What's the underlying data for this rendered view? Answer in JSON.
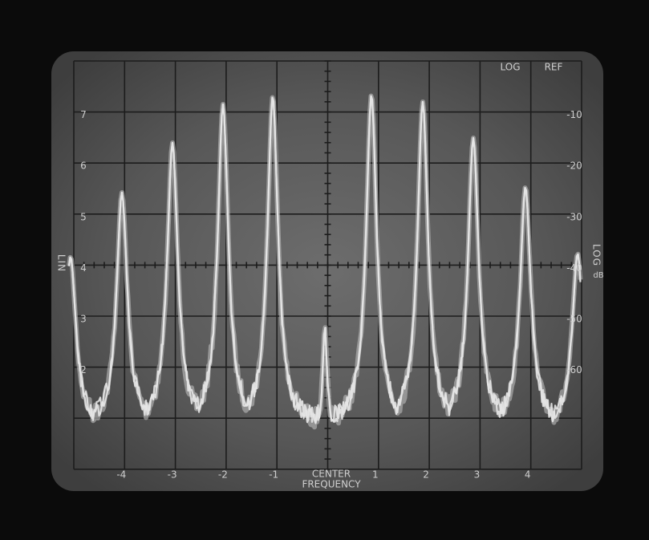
{
  "left_axis": {
    "title": "LIN",
    "labels": [
      "7",
      "6",
      "5",
      "4",
      "3",
      "2"
    ]
  },
  "right_axis": {
    "title": "LOG",
    "unit": "dB",
    "labels": [
      "-10",
      "-20",
      "-30",
      "-40",
      "-50",
      "-60"
    ]
  },
  "bottom_axis": {
    "labels": [
      "-4",
      "-3",
      "-2",
      "-1",
      "1",
      "2",
      "3",
      "4"
    ],
    "center_label": "CENTER",
    "title": "FREQUENCY"
  },
  "top_right": {
    "mode": "LOG",
    "reference": "REF"
  }
}
